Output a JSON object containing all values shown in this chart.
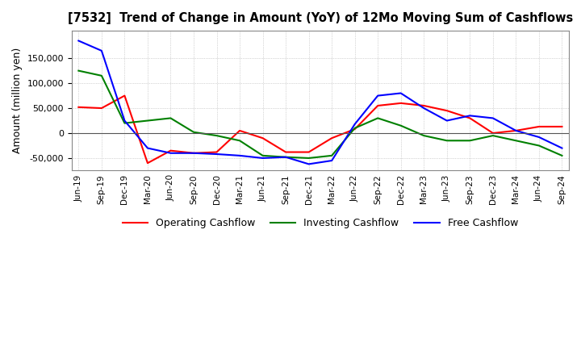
{
  "title": "[7532]  Trend of Change in Amount (YoY) of 12Mo Moving Sum of Cashflows",
  "ylabel": "Amount (million yen)",
  "ylim": [
    -75000,
    205000
  ],
  "yticks": [
    -50000,
    0,
    50000,
    100000,
    150000
  ],
  "x_labels": [
    "Jun-19",
    "Sep-19",
    "Dec-19",
    "Mar-20",
    "Jun-20",
    "Sep-20",
    "Dec-20",
    "Mar-21",
    "Jun-21",
    "Sep-21",
    "Dec-21",
    "Mar-22",
    "Jun-22",
    "Sep-22",
    "Dec-22",
    "Mar-23",
    "Jun-23",
    "Sep-23",
    "Dec-23",
    "Mar-24",
    "Jun-24",
    "Sep-24"
  ],
  "operating": [
    52000,
    50000,
    75000,
    -60000,
    -35000,
    -40000,
    -38000,
    5000,
    -10000,
    -38000,
    -38000,
    -10000,
    8000,
    55000,
    60000,
    55000,
    45000,
    30000,
    0,
    5000,
    13000,
    13000
  ],
  "investing": [
    125000,
    115000,
    20000,
    25000,
    30000,
    2000,
    -5000,
    -15000,
    -45000,
    -48000,
    -50000,
    -45000,
    10000,
    30000,
    15000,
    -5000,
    -15000,
    -15000,
    -5000,
    -15000,
    -25000,
    -45000
  ],
  "free": [
    185000,
    165000,
    25000,
    -30000,
    -40000,
    -40000,
    -42000,
    -45000,
    -50000,
    -48000,
    -62000,
    -55000,
    18000,
    75000,
    80000,
    50000,
    25000,
    35000,
    30000,
    5000,
    -8000,
    -30000
  ],
  "operating_color": "#ff0000",
  "investing_color": "#008000",
  "free_color": "#0000ff",
  "bg_color": "#ffffff",
  "grid_color": "#b0b0b0"
}
